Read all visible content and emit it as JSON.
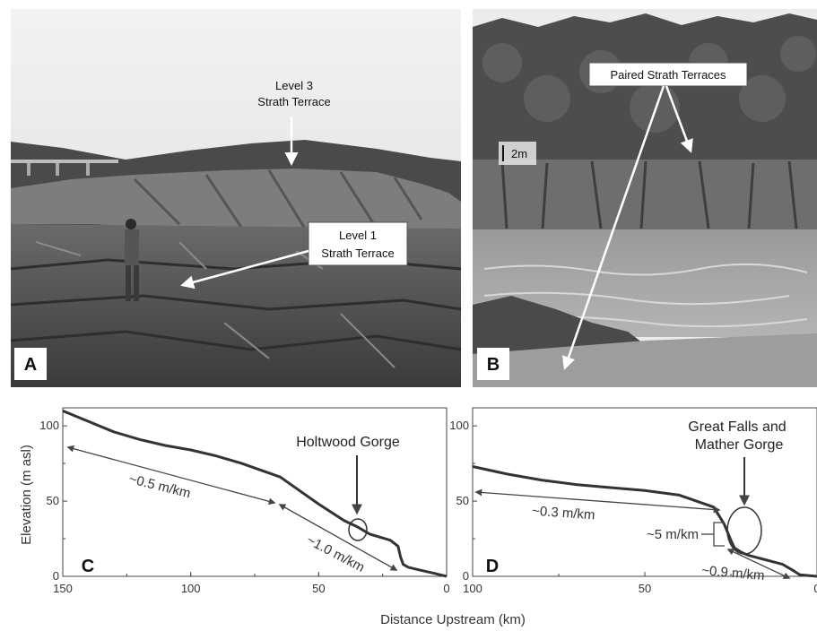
{
  "panels": {
    "a": {
      "letter": "A",
      "label_level3_line1": "Level 3",
      "label_level3_line2": "Strath Terrace",
      "label_level1_line1": "Level 1",
      "label_level1_line2": "Strath Terrace"
    },
    "b": {
      "letter": "B",
      "label_paired": "Paired Strath Terraces",
      "scale": "2m"
    },
    "c": {
      "letter": "C",
      "annotation_gorge": "Holtwood Gorge",
      "gradient_upper": "~0.5 m/km",
      "gradient_lower": "~1.0 m/km"
    },
    "d": {
      "letter": "D",
      "annotation_falls_line1": "Great Falls and",
      "annotation_falls_line2": "Mather Gorge",
      "gradient_upper": "~0.3 m/km",
      "gradient_step": "~5 m/km",
      "gradient_lower": "~0.9 m/km"
    }
  },
  "ylabel": "Elevation (m asl)",
  "xlabel": "Distance Upstream (km)",
  "chart_data": [
    {
      "type": "line",
      "panel": "C",
      "xlabel": "Distance Upstream (km)",
      "ylabel": "Elevation (m asl)",
      "xlim": [
        150,
        0
      ],
      "ylim": [
        0,
        112
      ],
      "x_ticks": [
        150,
        100,
        50,
        0
      ],
      "y_ticks": [
        0,
        50,
        100
      ],
      "series": [
        {
          "x": [
            150,
            140,
            130,
            120,
            110,
            100,
            90,
            80,
            70,
            65,
            60,
            50,
            40,
            35,
            30,
            22,
            19,
            18,
            17,
            15,
            10,
            5,
            0
          ],
          "values": [
            110,
            103,
            96,
            91,
            87,
            84,
            80,
            75,
            69,
            66,
            60,
            48,
            37,
            33,
            28,
            24,
            20,
            13,
            8,
            6,
            4,
            2,
            0
          ]
        }
      ]
    },
    {
      "type": "line",
      "panel": "D",
      "xlabel": "Distance Upstream (km)",
      "ylabel": "Elevation (m asl)",
      "xlim": [
        100,
        0
      ],
      "ylim": [
        0,
        112
      ],
      "x_ticks": [
        100,
        50,
        0
      ],
      "y_ticks": [
        0,
        50,
        100
      ],
      "series": [
        {
          "x": [
            100,
            90,
            80,
            70,
            60,
            50,
            40,
            35,
            30,
            27,
            25,
            24,
            22,
            20,
            15,
            10,
            7,
            5,
            0
          ],
          "values": [
            73,
            68,
            64,
            61,
            59,
            57,
            54,
            50,
            46,
            35,
            24,
            19,
            16,
            14,
            11,
            8,
            4,
            1,
            0
          ]
        }
      ]
    }
  ]
}
